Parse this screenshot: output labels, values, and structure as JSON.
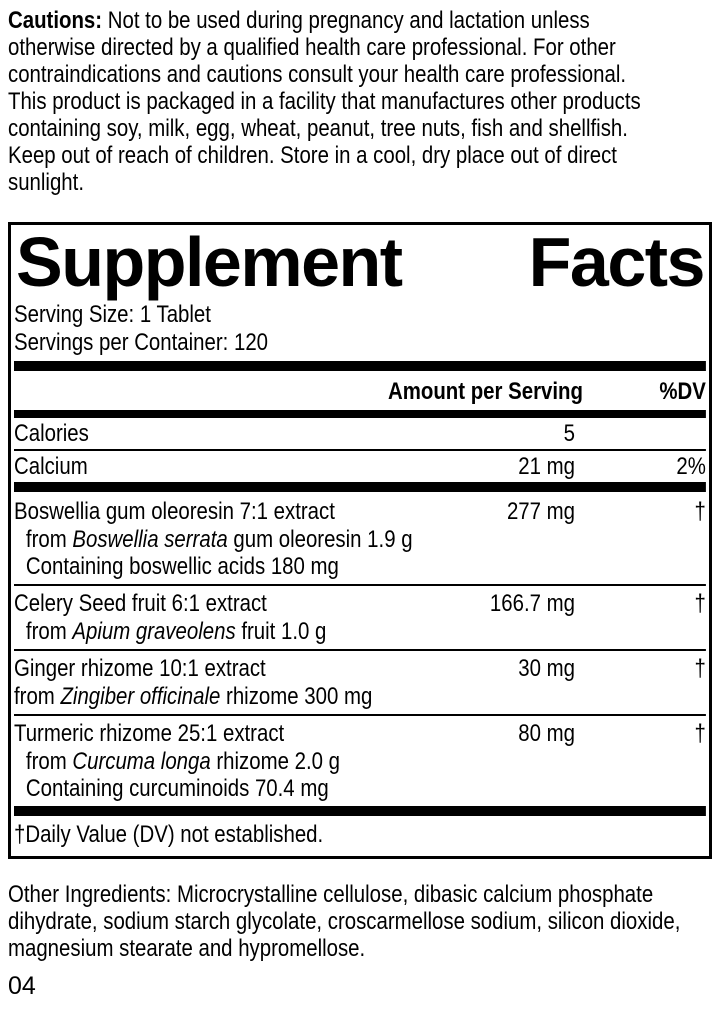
{
  "cautions": {
    "label": "Cautions:",
    "lines": [
      " Not to be used during pregnancy and lactation unless",
      "otherwise directed by a qualified health care professional. For other",
      "contraindications and cautions consult your health care professional.",
      "This product is packaged in a facility that manufactures other products",
      "containing soy, milk, egg, wheat, peanut, tree nuts, fish and shellfish.",
      "Keep out of reach of children. Store in a cool, dry place out of direct",
      "sunlight."
    ]
  },
  "facts": {
    "title_left": "Supplement",
    "title_right": "Facts",
    "serving_size": "Serving Size: 1 Tablet",
    "servings_per_container": "Servings per Container: 120",
    "header": {
      "amount": "Amount per Serving",
      "dv": "%DV"
    },
    "rows": [
      {
        "name": "Calories",
        "amount": "5",
        "dv": ""
      },
      {
        "name": "Calcium",
        "amount": "21 mg",
        "dv": "2%"
      }
    ],
    "groups": [
      {
        "name": "Boswellia gum oleoresin 7:1 extract",
        "amount": "277 mg",
        "dv": "†",
        "sublines": [
          {
            "pre": "from ",
            "italic": "Boswellia serrata",
            "post": " gum oleoresin 1.9 g"
          },
          {
            "pre": "Containing boswellic acids 180 mg",
            "italic": "",
            "post": ""
          }
        ]
      },
      {
        "name": "Celery Seed fruit 6:1 extract",
        "amount": "166.7 mg",
        "dv": "†",
        "sublines": [
          {
            "pre": "from ",
            "italic": "Apium graveolens",
            "post": " fruit 1.0 g"
          }
        ]
      },
      {
        "name": "Ginger rhizome 10:1 extract",
        "amount": "30 mg",
        "dv": "†",
        "sublines": [
          {
            "pre": "from ",
            "italic": "Zingiber officinale",
            "post": " rhizome 300 mg"
          }
        ]
      },
      {
        "name": "Turmeric rhizome 25:1 extract",
        "amount": "80 mg",
        "dv": "†",
        "sublines": [
          {
            "pre": "from ",
            "italic": "Curcuma longa",
            "post": " rhizome 2.0 g"
          },
          {
            "pre": "Containing curcuminoids 70.4 mg",
            "italic": "",
            "post": ""
          }
        ]
      }
    ],
    "footnote": "†Daily Value (DV) not established."
  },
  "other_ingredients": {
    "lines": [
      "Other Ingredients: Microcrystalline cellulose, dibasic calcium phosphate",
      "dihydrate, sodium starch glycolate, croscarmellose sodium, silicon dioxide,",
      "magnesium stearate and hypromellose."
    ]
  },
  "page_number": "04"
}
